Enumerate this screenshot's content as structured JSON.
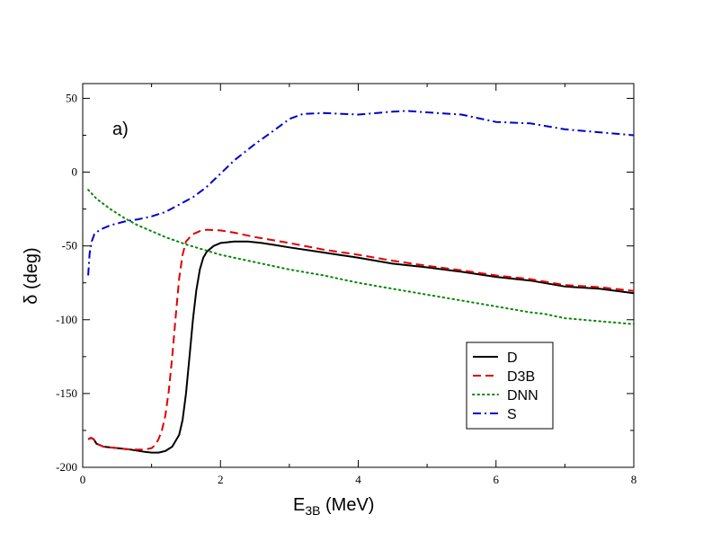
{
  "chart_data": {
    "type": "line",
    "title": "",
    "annotation": "a)",
    "xlabel": "E",
    "xlabel_sub": "3B",
    "xlabel_units": " (MeV)",
    "ylabel": "δ (deg)",
    "xlim": [
      0,
      8
    ],
    "ylim": [
      -200,
      60
    ],
    "x_ticks": [
      0,
      2,
      4,
      6,
      8
    ],
    "y_ticks": [
      50,
      0,
      -50,
      -100,
      -150,
      -200
    ],
    "legend_position": "lower-right",
    "series": [
      {
        "name": "D",
        "color": "#000000",
        "dash": "solid",
        "x": [
          0.08,
          0.12,
          0.16,
          0.2,
          0.3,
          0.5,
          0.7,
          0.9,
          1.0,
          1.1,
          1.2,
          1.3,
          1.4,
          1.45,
          1.5,
          1.55,
          1.6,
          1.65,
          1.7,
          1.75,
          1.8,
          1.9,
          2.0,
          2.2,
          2.4,
          2.6,
          2.8,
          3.0,
          3.5,
          4.0,
          4.5,
          5.0,
          5.5,
          6.0,
          6.5,
          7.0,
          7.5,
          8.0
        ],
        "y": [
          -181,
          -180,
          -181,
          -184,
          -186,
          -187,
          -188,
          -189.5,
          -190,
          -190,
          -189,
          -186,
          -178,
          -168,
          -150,
          -125,
          -100,
          -80,
          -66,
          -58,
          -54,
          -50,
          -48,
          -47,
          -47,
          -48,
          -49.5,
          -51,
          -54.5,
          -58,
          -62,
          -64.5,
          -67.5,
          -71,
          -73.5,
          -77.5,
          -79,
          -82
        ]
      },
      {
        "name": "D3B",
        "color": "#e00000",
        "dash": "dashed",
        "x": [
          0.08,
          0.12,
          0.16,
          0.2,
          0.3,
          0.5,
          0.7,
          0.9,
          1.0,
          1.05,
          1.1,
          1.15,
          1.2,
          1.25,
          1.3,
          1.35,
          1.4,
          1.45,
          1.5,
          1.6,
          1.7,
          1.8,
          2.0,
          2.2,
          2.5,
          3.0,
          3.5,
          4.0,
          4.5,
          5.0,
          5.5,
          6.0,
          6.5,
          7.0,
          7.5,
          8.0
        ],
        "y": [
          -181,
          -180,
          -181,
          -184,
          -186,
          -187,
          -188,
          -188,
          -187,
          -185,
          -181,
          -175,
          -165,
          -148,
          -125,
          -98,
          -72,
          -56,
          -47,
          -42,
          -40,
          -39,
          -39.5,
          -41,
          -44,
          -48,
          -52.5,
          -56,
          -60,
          -63.5,
          -66.5,
          -70,
          -72.5,
          -76.5,
          -78,
          -80.5
        ]
      },
      {
        "name": "DNN",
        "color": "#008800",
        "dash": "dotted",
        "x": [
          0.08,
          0.2,
          0.4,
          0.6,
          0.8,
          1.0,
          1.2,
          1.5,
          2.0,
          2.5,
          3.0,
          3.5,
          4.0,
          4.5,
          5.0,
          5.5,
          6.0,
          6.5,
          6.7,
          7.0,
          7.5,
          8.0
        ],
        "y": [
          -12,
          -18,
          -25,
          -31,
          -36,
          -40,
          -44,
          -49,
          -56,
          -61,
          -66,
          -70,
          -75,
          -79,
          -83,
          -87,
          -91,
          -95,
          -96,
          -99,
          -101,
          -103
        ]
      },
      {
        "name": "S",
        "color": "#0000cc",
        "dash": "dashdot",
        "x": [
          0.08,
          0.1,
          0.13,
          0.17,
          0.25,
          0.4,
          0.6,
          0.8,
          1.0,
          1.2,
          1.4,
          1.6,
          1.8,
          2.0,
          2.2,
          2.5,
          2.8,
          3.0,
          3.2,
          3.5,
          4.0,
          4.5,
          4.7,
          5.0,
          5.5,
          6.0,
          6.5,
          7.0,
          7.5,
          8.0
        ],
        "y": [
          -70,
          -55,
          -47,
          -42,
          -39,
          -36,
          -33.5,
          -32,
          -30,
          -27,
          -22,
          -17,
          -10,
          -1,
          8,
          19,
          29,
          36,
          39.5,
          40,
          39,
          41,
          41.5,
          40.5,
          39,
          34,
          33,
          29,
          27,
          25
        ]
      }
    ]
  }
}
